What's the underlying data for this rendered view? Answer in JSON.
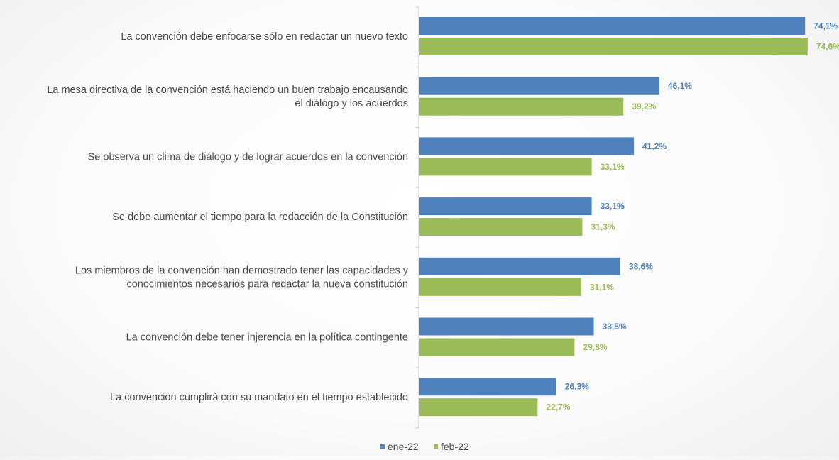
{
  "colors": {
    "ene-22": "#4f81bd",
    "feb-22": "#9bbb59",
    "axis": "#c8c8c8",
    "label_text": "#4a4a4a"
  },
  "chart_data": {
    "type": "bar",
    "orientation": "horizontal",
    "title": "",
    "xlabel": "",
    "ylabel": "",
    "xlim": [
      0,
      80
    ],
    "grid": false,
    "legend_position": "bottom",
    "categories": [
      [
        "La convención debe enfocarse sólo en redactar un nuevo texto"
      ],
      [
        "La mesa directiva de la convención está haciendo un buen trabajo encausando",
        "el diálogo y los acuerdos"
      ],
      [
        "Se observa un clima de diálogo y de lograr acuerdos en la convención"
      ],
      [
        "Se debe aumentar el tiempo para la redacción de la Constitución"
      ],
      [
        "Los miembros de la convención han demostrado tener las capacidades y",
        "conocimientos necesarios para redactar la nueva constitución"
      ],
      [
        "La convención debe tener injerencia en la política contingente"
      ],
      [
        "La convención cumplirá con su mandato en el tiempo establecido"
      ]
    ],
    "series": [
      {
        "name": "ene-22",
        "values": [
          74.1,
          46.1,
          41.2,
          33.1,
          38.6,
          33.5,
          26.3
        ],
        "labels": [
          "74,1%",
          "46,1%",
          "41,2%",
          "33,1%",
          "38,6%",
          "33,5%",
          "26,3%"
        ]
      },
      {
        "name": "feb-22",
        "values": [
          74.6,
          39.2,
          33.1,
          31.3,
          31.1,
          29.8,
          22.7
        ],
        "labels": [
          "74,6%",
          "39,2%",
          "33,1%",
          "31,3%",
          "31,1%",
          "29,8%",
          "22,7%"
        ]
      }
    ]
  }
}
